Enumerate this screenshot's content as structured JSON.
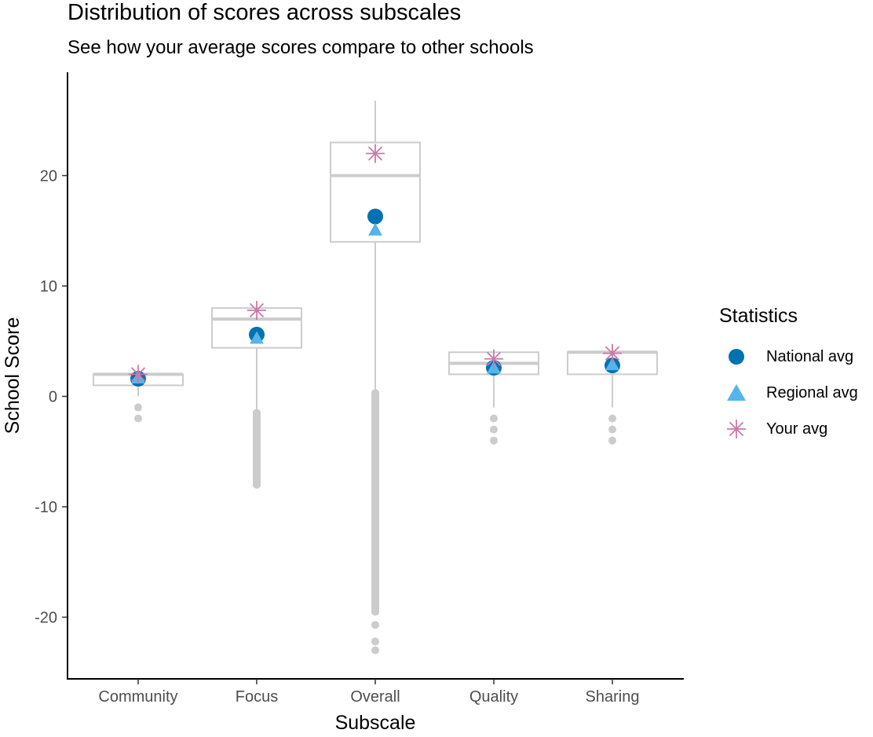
{
  "title": "Distribution of scores across subscales",
  "subtitle": "See how your average scores compare to other schools",
  "chart_data": {
    "type": "boxplot",
    "title": "Distribution of scores across subscales",
    "subtitle": "See how your average scores compare to other schools",
    "xlabel": "Subscale",
    "ylabel": "School Score",
    "categories": [
      "Community",
      "Focus",
      "Overall",
      "Quality",
      "Sharing"
    ],
    "ylim": [
      -25,
      27
    ],
    "yticks": [
      -20,
      -10,
      0,
      10,
      20
    ],
    "boxes": [
      {
        "category": "Community",
        "whisker_low": 0,
        "q1": 1,
        "median": 2,
        "q3": 2,
        "whisker_high": 2,
        "outliers": [
          -1,
          -2
        ]
      },
      {
        "category": "Focus",
        "whisker_low": -1.2,
        "q1": 4.4,
        "median": 7,
        "q3": 8,
        "whisker_high": 8,
        "outliers": [
          -1.5,
          -2,
          -2.5,
          -3,
          -3.5,
          -4,
          -4.5,
          -5,
          -5.5,
          -6,
          -6.5,
          -7,
          -7.5,
          -8
        ]
      },
      {
        "category": "Overall",
        "whisker_low": 0,
        "q1": 14,
        "median": 20,
        "q3": 23,
        "whisker_high": 26.8,
        "outliers": [
          0.3,
          -0.5,
          -1,
          -1.5,
          -2,
          -2.5,
          -3,
          -3.5,
          -4,
          -4.5,
          -5,
          -5.5,
          -6,
          -6.5,
          -7,
          -7.5,
          -8,
          -8.5,
          -9,
          -9.5,
          -10,
          -10.5,
          -11,
          -11.5,
          -12,
          -12.5,
          -13,
          -13.5,
          -14,
          -14.5,
          -15,
          -15.5,
          -16,
          -16.5,
          -17,
          -17.5,
          -18,
          -18.5,
          -19,
          -19.5,
          -20.7,
          -22.2,
          -23
        ]
      },
      {
        "category": "Quality",
        "whisker_low": -1,
        "q1": 2,
        "median": 3,
        "q3": 4,
        "whisker_high": 4,
        "outliers": [
          -2,
          -3,
          -4
        ]
      },
      {
        "category": "Sharing",
        "whisker_low": -1,
        "q1": 2,
        "median": 4,
        "q3": 4,
        "whisker_high": 4,
        "outliers": [
          -2,
          -3,
          -4
        ]
      }
    ],
    "series": [
      {
        "name": "National avg",
        "shape": "circle",
        "color": "#0072b2",
        "values": [
          1.6,
          5.6,
          16.3,
          2.6,
          2.8
        ]
      },
      {
        "name": "Regional avg",
        "shape": "triangle",
        "color": "#56b4e9",
        "values": [
          1.6,
          5.2,
          15.0,
          2.5,
          2.8
        ]
      },
      {
        "name": "Your avg",
        "shape": "asterisk",
        "color": "#cc79a7",
        "values": [
          2.0,
          7.8,
          22.0,
          3.4,
          3.9
        ]
      }
    ],
    "box_color": "#cccccc",
    "legend": {
      "title": "Statistics",
      "position": "right"
    },
    "grid": false
  }
}
